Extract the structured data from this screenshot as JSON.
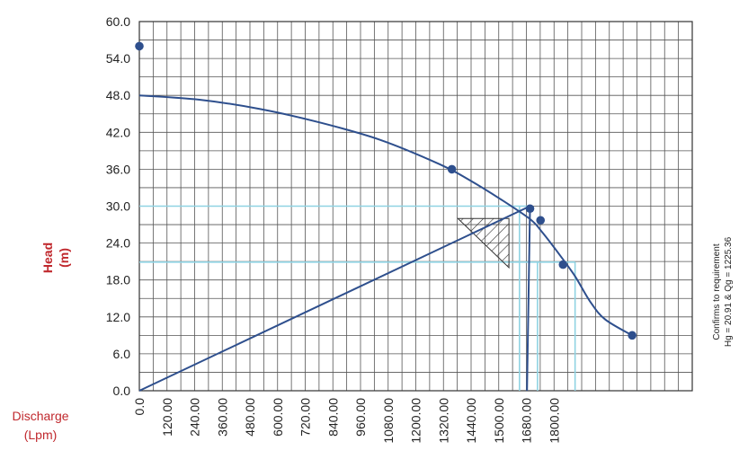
{
  "chart_data": {
    "type": "line",
    "title": "",
    "ylabel": "Head",
    "ylabel_unit": "(m)",
    "xlabel": "Discharge",
    "xlabel_unit": "(Lpm)",
    "xlim": [
      0,
      1840
    ],
    "ylim": [
      0,
      60
    ],
    "x_ticks": [
      0,
      120,
      240,
      360,
      480,
      600,
      720,
      840,
      960,
      1080,
      1200,
      1320,
      1440,
      1500,
      1680,
      1800
    ],
    "x_tick_labels": [
      "0.0",
      "120.00",
      "240.00",
      "360.00",
      "480.00",
      "600.00",
      "720.00",
      "840.00",
      "960.00",
      "1080.00",
      "1200.00",
      "1320.00",
      "1440.00",
      "1500.00",
      "1680.00",
      "1800.00"
    ],
    "y_ticks": [
      0,
      6,
      12,
      18,
      24,
      30,
      36,
      42,
      48,
      54,
      60
    ],
    "y_tick_labels": [
      "0.0",
      "6.0",
      "12.0",
      "18.0",
      "24.0",
      "30.0",
      "36.0",
      "42.0",
      "48.0",
      "54.0",
      "60.0"
    ],
    "grid": true,
    "colors": {
      "curve": "#2e4f8d",
      "guide": "#8fd3e3",
      "hatch": "#333333",
      "axis_title": "#c0282d",
      "grid": "#555555"
    },
    "series": [
      {
        "role": "pump-curve",
        "x": [
          0,
          200,
          400,
          600,
          800,
          1000,
          1100,
          1200,
          1300,
          1340,
          1400,
          1450,
          1500,
          1550,
          1640
        ],
        "y": [
          48.0,
          47.3,
          45.8,
          43.6,
          40.8,
          36.8,
          34.2,
          31.2,
          27.9,
          25.8,
          22.0,
          18.6,
          14.5,
          11.6,
          9.0
        ]
      },
      {
        "role": "system-line",
        "x": [
          0,
          1300
        ],
        "y": [
          0,
          30.0
        ]
      }
    ],
    "markers": [
      {
        "x": 0,
        "y": 56.0
      },
      {
        "x": 1040,
        "y": 36.0
      },
      {
        "x": 1300,
        "y": 29.6
      },
      {
        "x": 1335,
        "y": 27.7
      },
      {
        "x": 1410,
        "y": 20.5
      },
      {
        "x": 1640,
        "y": 9.0
      }
    ],
    "guide_lines": [
      {
        "y": 30.0,
        "x_start": 0,
        "x_end": 1290
      },
      {
        "y": 20.91,
        "x_start": 0,
        "x_end": 1450
      },
      {
        "x": 1265,
        "y_start": 0,
        "y_end": 30.0
      },
      {
        "x": 1325,
        "y_start": 0,
        "y_end": 20.91
      },
      {
        "x": 1450,
        "y_start": 0,
        "y_end": 20.91
      }
    ],
    "operating_point": {
      "x": 1300,
      "y": 29.6,
      "vertical_to_axis": 1290
    },
    "hatch_region": [
      [
        1060,
        28.0
      ],
      [
        1230,
        28.0
      ],
      [
        1230,
        20.0
      ]
    ],
    "annotation": {
      "line1": "Confirms to requirement",
      "line2": "Hg = 20.91 & Qg = 1225.36"
    }
  }
}
